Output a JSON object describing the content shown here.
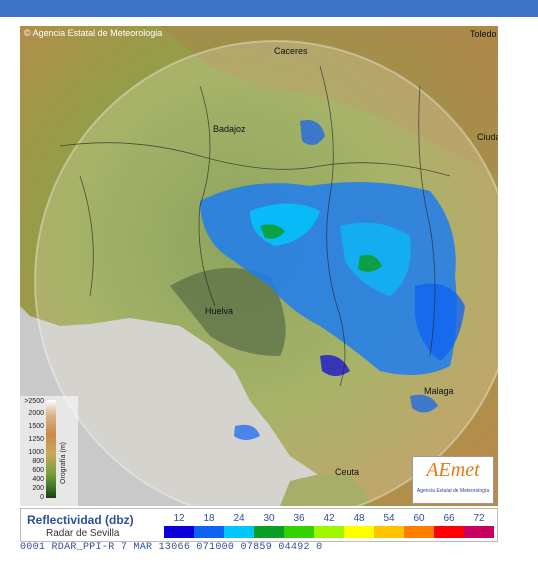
{
  "header": {
    "copyright": "© Agencia Estatal de Meteorologia"
  },
  "cities": [
    {
      "label": "Caceres"
    },
    {
      "label": "Toledo"
    },
    {
      "label": "Badajoz"
    },
    {
      "label": "Ciudad Real"
    },
    {
      "label": "Huelva"
    },
    {
      "label": "Malaga"
    },
    {
      "label": "Ceuta"
    }
  ],
  "orography": {
    "label": "Orografía (m)",
    "ticks": [
      ">2500",
      "2000",
      "1500",
      "1250",
      "1000",
      "800",
      "600",
      "400",
      "200",
      "0"
    ]
  },
  "logo": {
    "mark": "AEmet",
    "subtitle": "Agencia Estatal de Meteorología"
  },
  "legend": {
    "title": "Reflectividad (dbz)",
    "subtitle": "Radar de Sevilla",
    "values": [
      "12",
      "18",
      "24",
      "30",
      "36",
      "42",
      "48",
      "54",
      "60",
      "66",
      "72"
    ],
    "colors": [
      "#0a00d9",
      "#0f62f2",
      "#00c8ff",
      "#0a9e24",
      "#33d100",
      "#9cf700",
      "#ffff00",
      "#ffc300",
      "#ff7d00",
      "#ff0000",
      "#c80060"
    ]
  },
  "status_line": "0001 RDAR_PPI-R  7 MAR 13066 071000 07859 04492 0"
}
